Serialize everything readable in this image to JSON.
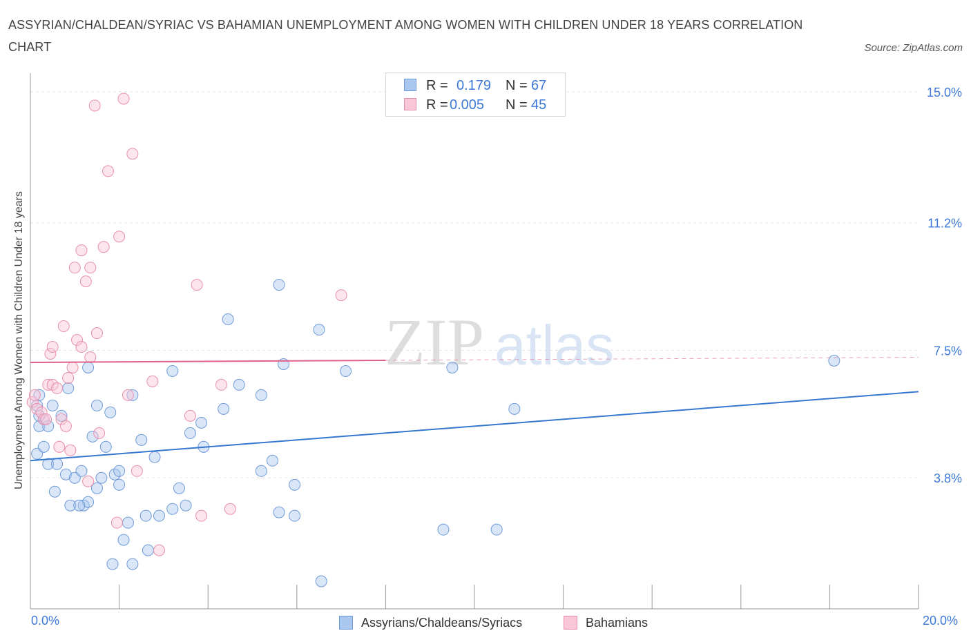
{
  "title": "ASSYRIAN/CHALDEAN/SYRIAC VS BAHAMIAN UNEMPLOYMENT AMONG WOMEN WITH CHILDREN UNDER 18 YEARS CORRELATION CHART",
  "source": "Source: ZipAtlas.com",
  "watermark": {
    "zip": "ZIP",
    "atlas": "atlas"
  },
  "stats": {
    "rows": [
      {
        "r_label": "R =",
        "r_value": "0.179",
        "n_label": "N =",
        "n_value": "67",
        "color": "#aac7f0",
        "border": "#6f9ad8"
      },
      {
        "r_label": "R =",
        "r_value": "0.005",
        "n_label": "N =",
        "n_value": "45",
        "color": "#f8c6d6",
        "border": "#e88fad"
      }
    ]
  },
  "legend": {
    "items": [
      {
        "label": "Assyrians/Chaldeans/Syriacs",
        "color": "#aac7f0",
        "border": "#6f9ad8"
      },
      {
        "label": "Bahamians",
        "color": "#f8c6d6",
        "border": "#e88fad"
      }
    ]
  },
  "colors": {
    "blue_fill": "rgba(170,199,240,0.45)",
    "blue_stroke": "#6f9ad8",
    "blue_line": "#3477d0",
    "pink_fill": "rgba(248,198,214,0.45)",
    "pink_stroke": "#e88fad",
    "pink_line": "#e0608a",
    "grid": "#e2e2e2",
    "tick_text": "#3c78d8"
  },
  "chart_data": {
    "type": "scatter",
    "xlabel": "",
    "ylabel": "Unemployment Among Women with Children Under 18 years",
    "xlim": [
      0,
      20
    ],
    "ylim": [
      0,
      15.3
    ],
    "x_tick_labels": [
      "0.0%",
      "20.0%"
    ],
    "y_ticks": [
      {
        "value": 3.8,
        "label": "3.8%"
      },
      {
        "value": 7.5,
        "label": "7.5%"
      },
      {
        "value": 11.2,
        "label": "11.2%"
      },
      {
        "value": 15.0,
        "label": "15.0%"
      }
    ],
    "series": [
      {
        "name": "Assyrians/Chaldeans/Syriacs",
        "trend": {
          "x": [
            0,
            20
          ],
          "y": [
            4.3,
            6.3
          ],
          "solid_to": 20
        },
        "points": [
          [
            0.2,
            6.2
          ],
          [
            0.15,
            5.9
          ],
          [
            0.3,
            5.5
          ],
          [
            0.2,
            5.3
          ],
          [
            0.15,
            4.5
          ],
          [
            0.4,
            4.2
          ],
          [
            0.3,
            4.7
          ],
          [
            0.5,
            5.9
          ],
          [
            0.6,
            4.2
          ],
          [
            0.55,
            3.4
          ],
          [
            0.7,
            5.6
          ],
          [
            0.85,
            6.4
          ],
          [
            0.8,
            3.9
          ],
          [
            0.9,
            3.0
          ],
          [
            1.0,
            3.8
          ],
          [
            1.2,
            3.0
          ],
          [
            1.15,
            4.0
          ],
          [
            1.3,
            3.1
          ],
          [
            1.4,
            5.0
          ],
          [
            1.5,
            3.5
          ],
          [
            1.6,
            3.8
          ],
          [
            1.7,
            4.7
          ],
          [
            1.8,
            5.7
          ],
          [
            1.3,
            7.0
          ],
          [
            1.5,
            5.9
          ],
          [
            1.9,
            3.9
          ],
          [
            2.0,
            3.6
          ],
          [
            2.1,
            2.0
          ],
          [
            2.2,
            2.5
          ],
          [
            2.3,
            6.2
          ],
          [
            1.85,
            1.3
          ],
          [
            2.3,
            1.3
          ],
          [
            2.5,
            4.9
          ],
          [
            2.6,
            2.7
          ],
          [
            2.65,
            1.7
          ],
          [
            2.8,
            4.4
          ],
          [
            2.9,
            2.7
          ],
          [
            3.2,
            6.9
          ],
          [
            3.2,
            2.9
          ],
          [
            3.35,
            3.5
          ],
          [
            3.5,
            3.0
          ],
          [
            3.6,
            5.1
          ],
          [
            3.85,
            5.4
          ],
          [
            3.9,
            4.7
          ],
          [
            4.35,
            5.8
          ],
          [
            4.45,
            8.4
          ],
          [
            4.7,
            6.5
          ],
          [
            5.2,
            6.2
          ],
          [
            5.2,
            4.0
          ],
          [
            5.45,
            4.3
          ],
          [
            5.6,
            9.4
          ],
          [
            5.6,
            2.8
          ],
          [
            5.7,
            7.1
          ],
          [
            5.95,
            3.6
          ],
          [
            5.95,
            2.7
          ],
          [
            6.5,
            8.1
          ],
          [
            6.55,
            0.8
          ],
          [
            7.1,
            6.9
          ],
          [
            9.3,
            2.3
          ],
          [
            9.5,
            7.0
          ],
          [
            10.5,
            2.3
          ],
          [
            10.9,
            5.8
          ],
          [
            18.1,
            7.2
          ],
          [
            0.2,
            5.6
          ],
          [
            1.1,
            3.0
          ],
          [
            2.0,
            4.0
          ],
          [
            0.4,
            5.3
          ]
        ]
      },
      {
        "name": "Bahamians",
        "trend": {
          "x": [
            0,
            20
          ],
          "y": [
            7.15,
            7.3
          ],
          "solid_to": 8
        },
        "points": [
          [
            0.05,
            6.0
          ],
          [
            0.15,
            5.8
          ],
          [
            0.25,
            5.7
          ],
          [
            0.3,
            5.5
          ],
          [
            0.35,
            5.5
          ],
          [
            0.4,
            6.5
          ],
          [
            0.5,
            6.5
          ],
          [
            0.45,
            7.4
          ],
          [
            0.5,
            7.6
          ],
          [
            0.6,
            6.4
          ],
          [
            0.65,
            4.7
          ],
          [
            0.7,
            5.5
          ],
          [
            0.75,
            8.2
          ],
          [
            0.8,
            5.3
          ],
          [
            0.85,
            6.7
          ],
          [
            0.9,
            4.6
          ],
          [
            0.95,
            7.0
          ],
          [
            1.0,
            9.9
          ],
          [
            1.05,
            7.8
          ],
          [
            1.15,
            7.6
          ],
          [
            1.15,
            10.4
          ],
          [
            1.25,
            9.5
          ],
          [
            1.3,
            3.7
          ],
          [
            1.35,
            7.3
          ],
          [
            1.35,
            9.9
          ],
          [
            1.45,
            14.6
          ],
          [
            1.5,
            8.0
          ],
          [
            1.55,
            5.1
          ],
          [
            1.65,
            10.5
          ],
          [
            1.75,
            12.7
          ],
          [
            1.95,
            2.5
          ],
          [
            2.0,
            10.8
          ],
          [
            2.1,
            14.8
          ],
          [
            2.2,
            6.2
          ],
          [
            2.3,
            13.2
          ],
          [
            2.4,
            4.0
          ],
          [
            2.75,
            6.6
          ],
          [
            2.9,
            1.7
          ],
          [
            3.6,
            5.6
          ],
          [
            3.75,
            9.4
          ],
          [
            3.85,
            2.7
          ],
          [
            4.3,
            6.5
          ],
          [
            4.5,
            2.9
          ],
          [
            7.0,
            9.1
          ],
          [
            0.1,
            6.2
          ]
        ]
      }
    ]
  }
}
